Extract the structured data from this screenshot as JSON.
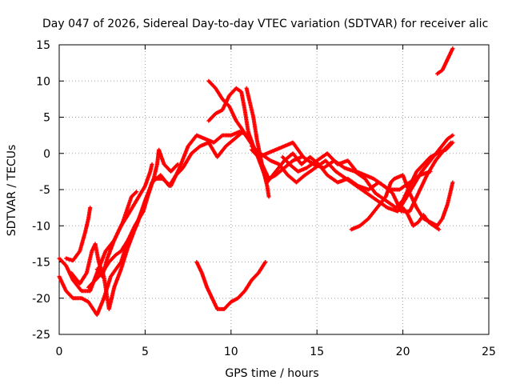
{
  "chart_data": {
    "type": "scatter",
    "title": "Day 047 of 2026, Sidereal Day-to-day VTEC variation (SDTVAR) for receiver alic",
    "xlabel": "GPS time / hours",
    "ylabel": "SDTVAR / TECUs",
    "xlim": [
      0,
      25
    ],
    "ylim": [
      -25,
      15
    ],
    "xticks": [
      "0",
      "5",
      "10",
      "15",
      "20",
      "25"
    ],
    "yticks": [
      "-25",
      "-20",
      "-15",
      "-10",
      "-5",
      "0",
      "5",
      "10",
      "15"
    ],
    "grid": true,
    "marker": "+",
    "color": "#ff0000",
    "series": [
      {
        "points": [
          [
            0.0,
            -14.5
          ],
          [
            0.4,
            -15.5
          ],
          [
            0.8,
            -17.5
          ],
          [
            1.3,
            -19.0
          ],
          [
            1.8,
            -19.0
          ],
          [
            2.2,
            -16.5
          ],
          [
            2.7,
            -13.5
          ],
          [
            3.2,
            -12.0
          ],
          [
            3.7,
            -9.5
          ],
          [
            4.2,
            -6.0
          ],
          [
            4.5,
            -5.3
          ]
        ]
      },
      {
        "points": [
          [
            0.0,
            -17.0
          ],
          [
            0.4,
            -19.0
          ],
          [
            0.8,
            -20.0
          ],
          [
            1.3,
            -20.0
          ],
          [
            1.7,
            -20.5
          ],
          [
            2.2,
            -22.3
          ],
          [
            2.6,
            -20.0
          ],
          [
            3.0,
            -17.0
          ],
          [
            3.6,
            -15.0
          ],
          [
            4.0,
            -12.0
          ],
          [
            4.5,
            -10.0
          ],
          [
            5.0,
            -6.5
          ],
          [
            5.5,
            -3.5
          ],
          [
            6.0,
            -3.5
          ],
          [
            6.5,
            -4.5
          ],
          [
            7.0,
            -2.0
          ],
          [
            7.5,
            1.0
          ],
          [
            8.0,
            2.5
          ],
          [
            8.5,
            2.0
          ],
          [
            9.0,
            1.5
          ],
          [
            9.5,
            2.5
          ],
          [
            10.0,
            2.5
          ],
          [
            10.5,
            3.0
          ],
          [
            11.0,
            2.5
          ]
        ]
      },
      {
        "points": [
          [
            0.4,
            -14.5
          ],
          [
            0.8,
            -14.8
          ],
          [
            1.2,
            -13.5
          ],
          [
            1.5,
            -11.0
          ],
          [
            1.7,
            -9.0
          ],
          [
            1.8,
            -7.5
          ]
        ]
      },
      {
        "points": [
          [
            1.7,
            -18.5
          ],
          [
            2.1,
            -17.5
          ],
          [
            2.5,
            -16.5
          ],
          [
            2.9,
            -15.0
          ],
          [
            3.3,
            -14.0
          ],
          [
            3.6,
            -13.5
          ],
          [
            4.0,
            -12.0
          ],
          [
            4.4,
            -10.0
          ],
          [
            4.9,
            -8.0
          ],
          [
            5.4,
            -4.0
          ],
          [
            5.9,
            -3.0
          ],
          [
            6.4,
            -4.5
          ],
          [
            6.8,
            -3.0
          ],
          [
            7.2,
            -2.0
          ],
          [
            7.7,
            0.0
          ],
          [
            8.2,
            1.0
          ],
          [
            8.7,
            1.5
          ],
          [
            9.2,
            -0.5
          ],
          [
            9.7,
            1.0
          ],
          [
            10.2,
            2.0
          ],
          [
            10.7,
            3.0
          ],
          [
            11.0,
            2.0
          ]
        ]
      },
      {
        "points": [
          [
            0.7,
            -16.5
          ],
          [
            1.2,
            -18.0
          ],
          [
            1.6,
            -16.5
          ],
          [
            1.9,
            -13.5
          ],
          [
            2.1,
            -12.5
          ],
          [
            2.3,
            -15.0
          ],
          [
            2.6,
            -17.0
          ],
          [
            2.9,
            -21.5
          ],
          [
            3.2,
            -18.5
          ],
          [
            3.6,
            -16.0
          ],
          [
            4.0,
            -13.0
          ],
          [
            4.4,
            -10.5
          ],
          [
            4.8,
            -8.0
          ],
          [
            5.2,
            -5.5
          ],
          [
            5.5,
            -3.5
          ],
          [
            5.7,
            -1.5
          ],
          [
            5.8,
            0.5
          ],
          [
            6.1,
            -1.5
          ],
          [
            6.5,
            -2.5
          ],
          [
            6.9,
            -1.5
          ]
        ]
      },
      {
        "points": [
          [
            2.2,
            -16.0
          ],
          [
            2.5,
            -17.0
          ],
          [
            2.8,
            -14.5
          ],
          [
            3.2,
            -12.0
          ],
          [
            3.6,
            -10.0
          ],
          [
            4.0,
            -8.5
          ],
          [
            4.5,
            -6.5
          ],
          [
            5.0,
            -4.5
          ],
          [
            5.3,
            -2.5
          ],
          [
            5.4,
            -1.5
          ]
        ]
      },
      {
        "points": [
          [
            8.0,
            -15.0
          ],
          [
            8.3,
            -16.5
          ],
          [
            8.6,
            -18.5
          ],
          [
            8.9,
            -20.0
          ],
          [
            9.2,
            -21.5
          ],
          [
            9.6,
            -21.5
          ],
          [
            10.0,
            -20.5
          ],
          [
            10.4,
            -20.0
          ],
          [
            10.8,
            -19.0
          ],
          [
            11.2,
            -17.5
          ],
          [
            11.6,
            -16.5
          ],
          [
            12.0,
            -15.0
          ]
        ]
      },
      {
        "points": [
          [
            8.7,
            4.5
          ],
          [
            9.1,
            5.5
          ],
          [
            9.5,
            6.0
          ],
          [
            9.9,
            8.0
          ],
          [
            10.3,
            9.0
          ],
          [
            10.6,
            8.5
          ],
          [
            10.8,
            6.0
          ],
          [
            11.0,
            3.0
          ],
          [
            11.3,
            1.0
          ],
          [
            11.6,
            -0.5
          ],
          [
            11.9,
            -2.0
          ],
          [
            12.2,
            -3.5
          ],
          [
            12.6,
            -3.0
          ],
          [
            13.1,
            -2.0
          ],
          [
            13.6,
            -1.0
          ],
          [
            14.1,
            -0.5
          ]
        ]
      },
      {
        "points": [
          [
            8.7,
            10.0
          ],
          [
            9.1,
            9.0
          ],
          [
            9.5,
            7.5
          ],
          [
            9.9,
            6.5
          ],
          [
            10.3,
            4.5
          ],
          [
            10.6,
            3.5
          ],
          [
            11.0,
            2.0
          ],
          [
            11.4,
            0.5
          ],
          [
            11.8,
            -2.0
          ],
          [
            12.1,
            -4.0
          ],
          [
            12.6,
            -2.5
          ],
          [
            13.1,
            -1.0
          ],
          [
            13.6,
            0.0
          ],
          [
            14.1,
            -1.5
          ],
          [
            14.6,
            -0.5
          ],
          [
            15.1,
            -1.5
          ],
          [
            15.6,
            -3.0
          ],
          [
            16.2,
            -4.0
          ],
          [
            16.8,
            -3.5
          ],
          [
            17.4,
            -4.5
          ],
          [
            18.0,
            -5.0
          ],
          [
            18.6,
            -4.0
          ],
          [
            19.2,
            -5.0
          ],
          [
            19.8,
            -5.0
          ],
          [
            20.4,
            -4.0
          ],
          [
            21.0,
            -3.0
          ],
          [
            21.6,
            -2.5
          ]
        ]
      },
      {
        "points": [
          [
            10.9,
            9.0
          ],
          [
            11.1,
            7.0
          ],
          [
            11.3,
            5.0
          ],
          [
            11.5,
            2.0
          ],
          [
            11.8,
            -1.5
          ],
          [
            12.1,
            -4.5
          ],
          [
            12.2,
            -6.0
          ]
        ]
      },
      {
        "points": [
          [
            11.2,
            0.5
          ],
          [
            11.6,
            -0.5
          ],
          [
            12.1,
            0.0
          ],
          [
            12.6,
            0.5
          ],
          [
            13.1,
            1.0
          ],
          [
            13.6,
            1.5
          ],
          [
            14.2,
            -0.5
          ],
          [
            14.8,
            -1.5
          ],
          [
            15.4,
            -2.0
          ],
          [
            16.0,
            -1.0
          ],
          [
            16.6,
            -2.0
          ],
          [
            17.2,
            -2.5
          ],
          [
            17.8,
            -3.5
          ],
          [
            18.4,
            -5.5
          ],
          [
            19.0,
            -6.5
          ],
          [
            19.6,
            -7.5
          ],
          [
            20.0,
            -6.5
          ],
          [
            20.4,
            -4.5
          ],
          [
            20.8,
            -2.5
          ],
          [
            21.2,
            -1.5
          ],
          [
            21.6,
            -0.5
          ],
          [
            22.0,
            0.0
          ],
          [
            22.5,
            0.5
          ],
          [
            22.9,
            1.5
          ]
        ]
      },
      {
        "points": [
          [
            11.2,
            1.0
          ],
          [
            11.7,
            0.0
          ],
          [
            12.3,
            -1.0
          ],
          [
            12.8,
            -1.5
          ],
          [
            13.3,
            -3.0
          ],
          [
            13.8,
            -4.0
          ],
          [
            14.3,
            -3.0
          ],
          [
            14.9,
            -2.0
          ],
          [
            15.5,
            -1.0
          ],
          [
            16.1,
            -2.5
          ],
          [
            16.7,
            -3.5
          ],
          [
            17.3,
            -4.5
          ],
          [
            17.9,
            -5.5
          ],
          [
            18.5,
            -6.5
          ],
          [
            19.1,
            -7.5
          ],
          [
            19.7,
            -8.0
          ],
          [
            20.1,
            -6.5
          ],
          [
            20.6,
            -4.5
          ],
          [
            21.1,
            -2.5
          ],
          [
            21.6,
            -1.0
          ],
          [
            22.1,
            0.5
          ],
          [
            22.6,
            2.0
          ],
          [
            22.9,
            2.5
          ]
        ]
      },
      {
        "points": [
          [
            13.0,
            -0.5
          ],
          [
            13.4,
            -1.5
          ],
          [
            13.9,
            -2.5
          ],
          [
            14.4,
            -2.0
          ],
          [
            15.0,
            -1.0
          ],
          [
            15.6,
            0.0
          ],
          [
            16.2,
            -1.5
          ],
          [
            16.8,
            -1.0
          ],
          [
            17.3,
            -2.5
          ],
          [
            17.8,
            -3.0
          ],
          [
            18.3,
            -3.5
          ],
          [
            18.9,
            -4.5
          ],
          [
            19.4,
            -5.5
          ],
          [
            19.9,
            -8.0
          ],
          [
            20.4,
            -8.0
          ],
          [
            20.9,
            -5.5
          ],
          [
            21.4,
            -3.0
          ],
          [
            21.9,
            -1.0
          ],
          [
            22.4,
            0.5
          ],
          [
            22.8,
            1.5
          ]
        ]
      },
      {
        "points": [
          [
            17.0,
            -10.5
          ],
          [
            17.5,
            -10.0
          ],
          [
            18.0,
            -9.0
          ],
          [
            18.5,
            -7.5
          ],
          [
            19.0,
            -6.0
          ],
          [
            19.3,
            -4.0
          ],
          [
            19.5,
            -3.5
          ],
          [
            20.0,
            -3.0
          ],
          [
            20.4,
            -5.5
          ],
          [
            20.8,
            -7.5
          ],
          [
            21.2,
            -9.0
          ],
          [
            21.6,
            -9.5
          ],
          [
            22.0,
            -10.0
          ],
          [
            22.3,
            -9.0
          ],
          [
            22.6,
            -7.0
          ],
          [
            22.8,
            -5.0
          ],
          [
            22.9,
            -4.0
          ]
        ]
      },
      {
        "points": [
          [
            20.0,
            -7.5
          ],
          [
            20.3,
            -8.5
          ],
          [
            20.6,
            -10.0
          ],
          [
            20.9,
            -9.5
          ],
          [
            21.2,
            -8.5
          ],
          [
            21.5,
            -9.5
          ],
          [
            21.8,
            -10.0
          ],
          [
            22.1,
            -10.5
          ]
        ]
      },
      {
        "points": [
          [
            22.0,
            11.0
          ],
          [
            22.3,
            11.5
          ],
          [
            22.5,
            12.5
          ],
          [
            22.7,
            13.5
          ],
          [
            22.9,
            14.5
          ]
        ]
      }
    ]
  }
}
